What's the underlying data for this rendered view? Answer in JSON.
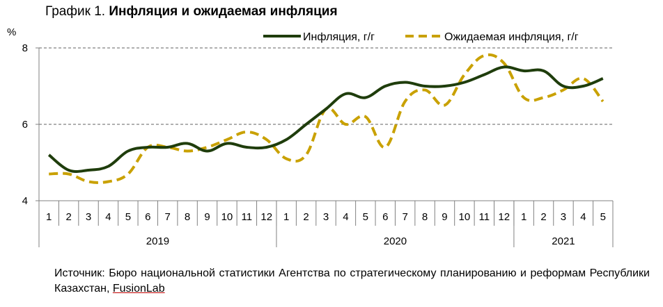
{
  "title": {
    "prefix": "График 1.",
    "main": "Инфляция и ожидаемая инфляция"
  },
  "colors": {
    "inflation": "#1f3d0c",
    "expected": "#c9a100",
    "grid": "#808080",
    "axis": "#808080"
  },
  "source": {
    "text": "Источник: Бюро национальной статистики Агентства по стратегическому планированию и реформам Республики Казахстан, ",
    "link": "FusionLab"
  },
  "chart_data": {
    "type": "line",
    "ylabel": "%",
    "ylim": [
      4,
      8
    ],
    "yticks": [
      4,
      6,
      8
    ],
    "grid": true,
    "legend_position": "top-right",
    "categories": [
      "1",
      "2",
      "3",
      "4",
      "5",
      "6",
      "7",
      "8",
      "9",
      "10",
      "11",
      "12",
      "1",
      "2",
      "3",
      "4",
      "5",
      "6",
      "7",
      "8",
      "9",
      "10",
      "11",
      "12",
      "1",
      "2",
      "3",
      "4",
      "5"
    ],
    "year_groups": [
      {
        "label": "2019",
        "count": 12
      },
      {
        "label": "2020",
        "count": 12
      },
      {
        "label": "2021",
        "count": 5
      }
    ],
    "series": [
      {
        "name": "Инфляция, г/г",
        "style": "solid",
        "values": [
          5.2,
          4.8,
          4.8,
          4.9,
          5.3,
          5.4,
          5.4,
          5.5,
          5.3,
          5.5,
          5.4,
          5.4,
          5.6,
          6.0,
          6.4,
          6.8,
          6.7,
          7.0,
          7.1,
          7.0,
          7.0,
          7.1,
          7.3,
          7.5,
          7.4,
          7.4,
          7.0,
          7.0,
          7.2
        ]
      },
      {
        "name": "Ожидаемая инфляция, г/г",
        "style": "dashed",
        "values": [
          4.7,
          4.7,
          4.5,
          4.5,
          4.7,
          5.4,
          5.4,
          5.3,
          5.4,
          5.6,
          5.8,
          5.6,
          5.1,
          5.2,
          6.4,
          6.0,
          6.2,
          5.4,
          6.6,
          6.9,
          6.5,
          7.3,
          7.8,
          7.6,
          6.7,
          6.7,
          6.9,
          7.2,
          6.6
        ]
      }
    ]
  }
}
